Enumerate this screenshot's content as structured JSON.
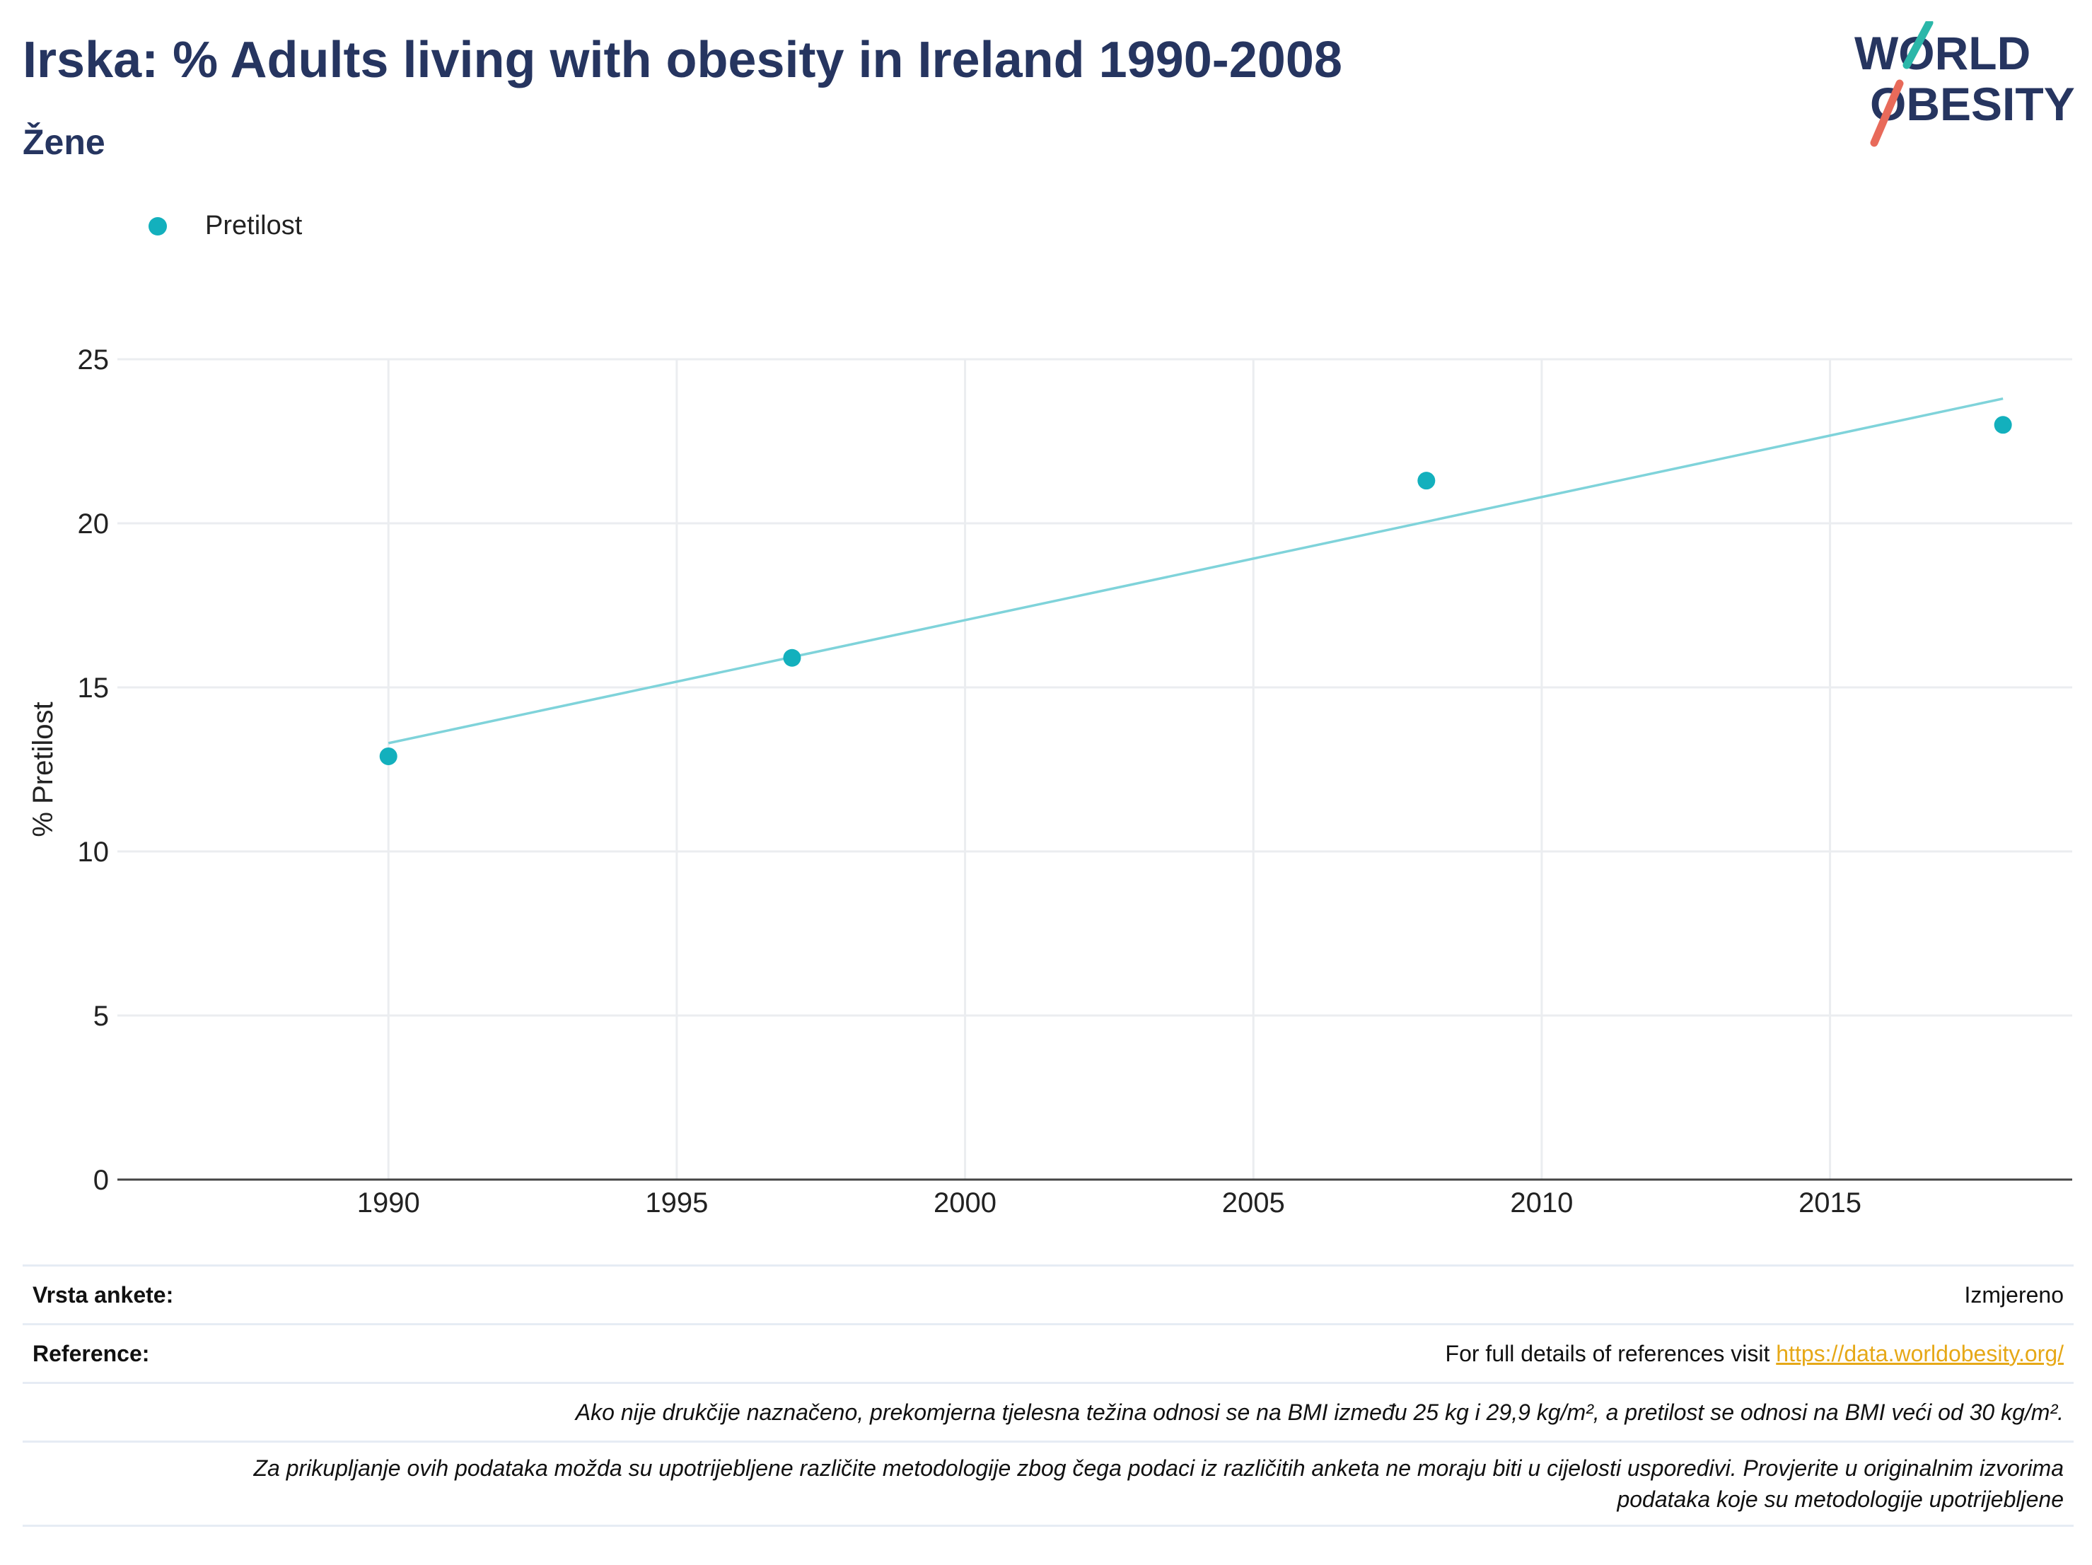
{
  "header": {
    "title": "Irska: % Adults living with obesity in Ireland 1990-2008",
    "subtitle": "Žene",
    "logo_text_1": "WORLD",
    "logo_text_2": "OBESITY"
  },
  "colors": {
    "series": "#13b0bd",
    "trend": "#7fd3da",
    "title": "#263560",
    "logo_slash_top": "#2bb7a9",
    "logo_slash_bottom": "#e86a5a"
  },
  "chart_data": {
    "type": "scatter",
    "title": "Irska: % Adults living with obesity in Ireland 1990-2008",
    "subtitle": "Žene",
    "ylabel": "% Pretilost",
    "xlabel": "",
    "xlim": [
      1985.3,
      2019.2
    ],
    "ylim": [
      0,
      25
    ],
    "x_ticks": [
      1990,
      1995,
      2000,
      2005,
      2010,
      2015
    ],
    "y_ticks": [
      0,
      5,
      10,
      15,
      20,
      25
    ],
    "grid": true,
    "legend_position": "top-left",
    "series": [
      {
        "name": "Pretilost",
        "x": [
          1990,
          1997,
          2008,
          2018
        ],
        "y": [
          12.9,
          15.9,
          21.3,
          23.0
        ]
      }
    ],
    "trendline": {
      "x": [
        1990,
        2018
      ],
      "y": [
        13.3,
        23.8
      ]
    }
  },
  "footer": {
    "survey_type_label": "Vrsta ankete:",
    "survey_type_value": "Izmjereno",
    "references_label": "Reference:",
    "references_text": "For full details of references visit ",
    "references_link": "https://data.worldobesity.org/",
    "note_1": "Ako nije drukčije naznačeno, prekomjerna tjelesna težina odnosi se na BMI između 25 kg i 29,9 kg/m², a pretilost se odnosi na BMI veći od 30 kg/m².",
    "note_2a": "Za prikupljanje ovih podataka možda su upotrijebljene različite metodologije zbog čega podaci iz različitih anketa ne moraju biti u cijelosti usporedivi. Provjerite u originalnim izvorima",
    "note_2b": "podataka koje su metodologije upotrijebljene"
  }
}
